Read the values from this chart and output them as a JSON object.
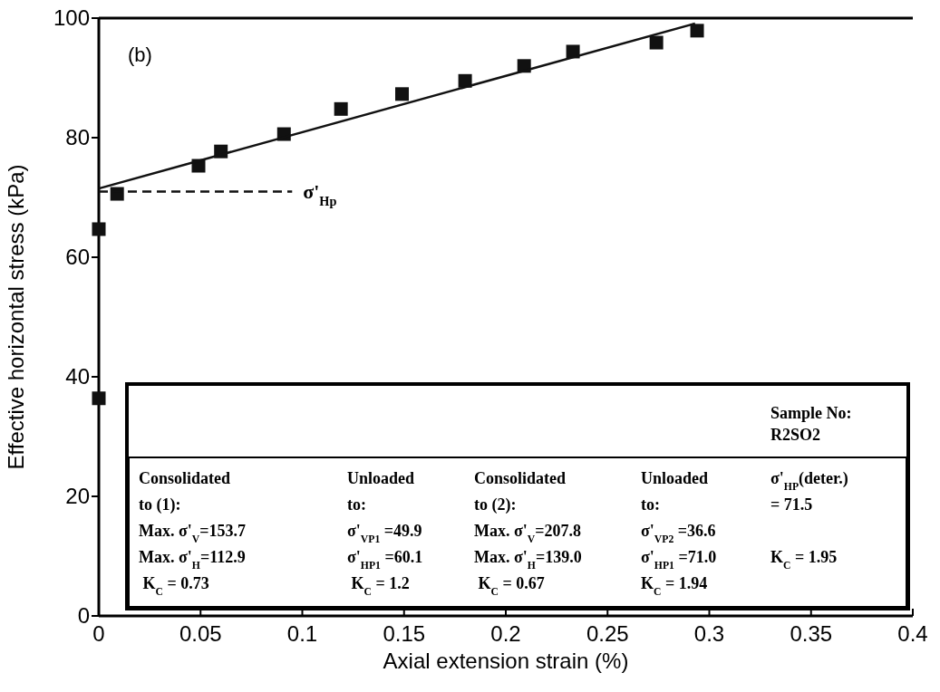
{
  "chart_data": {
    "type": "scatter",
    "xlabel": "Axial extension strain (%)",
    "ylabel": "Effective horizontal stress (kPa)",
    "xlim": [
      0,
      0.4
    ],
    "ylim": [
      0,
      100
    ],
    "xticks": [
      0,
      0.05,
      0.1,
      0.15,
      0.2,
      0.25,
      0.3,
      0.35,
      0.4
    ],
    "yticks": [
      0,
      20,
      40,
      60,
      80,
      100
    ],
    "grid": false,
    "marker": "square",
    "series": [
      {
        "color": "#111111",
        "x": [
          0,
          0,
          0.009,
          0.049,
          0.06,
          0.091,
          0.119,
          0.149,
          0.18,
          0.209,
          0.233,
          0.274,
          0.294
        ],
        "values": [
          36.4,
          64.7,
          70.6,
          75.3,
          77.7,
          80.6,
          84.8,
          87.3,
          89.5,
          92.0,
          94.4,
          95.9,
          97.9
        ]
      },
      {
        "type": "line",
        "color": "#111111",
        "line_style": "solid",
        "marker": "none",
        "x": [
          0,
          0.293
        ],
        "values": [
          71.5,
          99.1
        ]
      },
      {
        "type": "line",
        "color": "#111111",
        "line_style": "dashed",
        "marker": "none",
        "x": [
          0,
          0.095
        ],
        "values": [
          71,
          71
        ]
      }
    ],
    "annotations": [
      "(b)",
      "σ'$_{Hp}$",
      "Sample No:\nR2SO2",
      "Consolidated\nto (1):\nMax. σ'$_{V}$=153.7\nMax. σ'$_{H}$=112.9\n K$_{C}$ = 0.73",
      "Unloaded\nto:\nσ'$_{VP1}$ =49.9\nσ'$_{HP1}$ =60.1\n K$_{C}$ = 1.2",
      "Consolidated\nto (2):\nMax. σ'$_{V}$=207.8\nMax. σ'$_{H}$=139.0\n K$_{C}$ = 0.67",
      "Unloaded\nto:\nσ'$_{VP2}$ =36.6\nσ'$_{HP1}$ =71.0\nK$_{C}$ = 1.94",
      "σ'$_{HP}$(deter.)\n= 71.5\n\nK$_{C}$ = 1.95"
    ]
  }
}
